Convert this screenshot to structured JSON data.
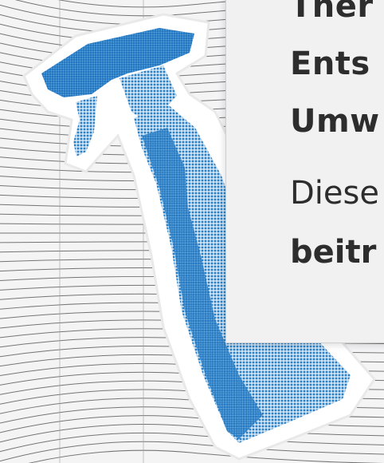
{
  "card": {
    "heading_lines": [
      "Ther",
      "Ents",
      "Umw"
    ],
    "body_line": "Diese",
    "bold_line": "beitr"
  },
  "colors": {
    "background": "#f4f4f5",
    "grid_line": "#4a4a4a",
    "sticker_blue": "#2a80c8",
    "text": "#2d2d2d"
  },
  "icons": {
    "sticker": "spray-bottle-icon"
  }
}
